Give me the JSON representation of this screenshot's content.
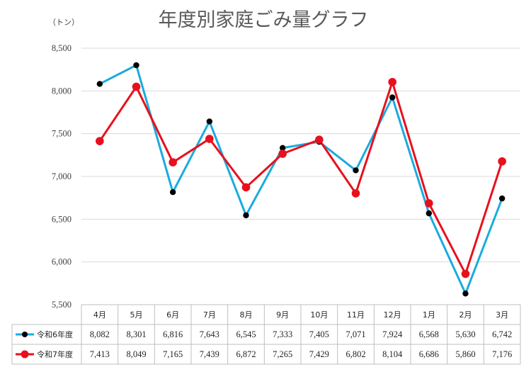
{
  "chart_data": {
    "type": "line",
    "title": "年度別家庭ごみ量グラフ",
    "ylabel": "（トン）",
    "xlabel": "",
    "categories": [
      "4月",
      "5月",
      "6月",
      "7月",
      "8月",
      "9月",
      "10月",
      "11月",
      "12月",
      "1月",
      "2月",
      "3月"
    ],
    "ylim": [
      5500,
      8500
    ],
    "yticks": [
      5500,
      6000,
      6500,
      7000,
      7500,
      8000,
      8500
    ],
    "ytick_labels": [
      "5,500",
      "6,000",
      "6,500",
      "7,000",
      "7,500",
      "8,000",
      "8,500"
    ],
    "grid": true,
    "legend": "data-table",
    "series": [
      {
        "name": "令和6年度",
        "values": [
          8082,
          8301,
          6816,
          7643,
          6545,
          7333,
          7405,
          7071,
          7924,
          6568,
          5630,
          6742
        ],
        "labels": [
          "8,082",
          "8,301",
          "6,816",
          "7,643",
          "6,545",
          "7,333",
          "7,405",
          "7,071",
          "7,924",
          "6,568",
          "5,630",
          "6,742"
        ],
        "line_color": "#1aabdf",
        "marker_color": "#000000"
      },
      {
        "name": "令和7年度",
        "values": [
          7413,
          8049,
          7165,
          7439,
          6872,
          7265,
          7429,
          6802,
          8104,
          6686,
          5860,
          7176
        ],
        "labels": [
          "7,413",
          "8,049",
          "7,165",
          "7,439",
          "6,872",
          "7,265",
          "7,429",
          "6,802",
          "8,104",
          "6,686",
          "5,860",
          "7,176"
        ],
        "line_color": "#e8101d",
        "marker_color": "#e8101d"
      }
    ]
  }
}
